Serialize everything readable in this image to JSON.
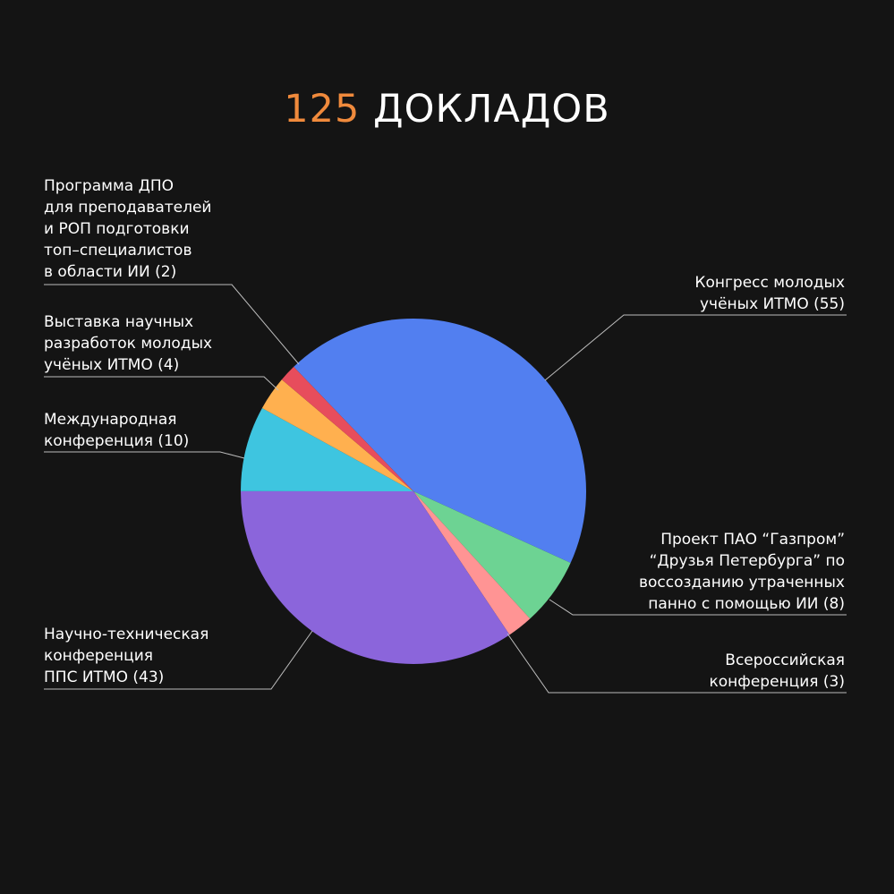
{
  "title": {
    "number": "125",
    "text": "ДОКЛАДОВ"
  },
  "colors": {
    "background": "#141414",
    "accent": "#f08a3c",
    "leader_lines": "#bdbdbd"
  },
  "chart_data": {
    "type": "pie",
    "title": "125 ДОКЛАДОВ",
    "total": 125,
    "slices": [
      {
        "label": "Конгресс молодых\nучёных ИТМО (55)",
        "value": 55,
        "color": "#527ff0"
      },
      {
        "label": "Проект ПАО “Газпром”\n“Друзья Петербурга” по\nвоссозданию утраченных\nпанно с помощью ИИ (8)",
        "value": 8,
        "color": "#6dd393"
      },
      {
        "label": "Всероссийская\nконференция (3)",
        "value": 3,
        "color": "#ff9494"
      },
      {
        "label": "Научно-техническая\nконференция\nППС ИТМО (43)",
        "value": 43,
        "color": "#8b65db"
      },
      {
        "label": "Международная\nконференция (10)",
        "value": 10,
        "color": "#3ec5e0"
      },
      {
        "label": "Выставка научных\nразработок молодых\nучёных ИТМО (4)",
        "value": 4,
        "color": "#ffb04f"
      },
      {
        "label": "Программа ДПО\nдля преподавателей\nи РОП подготовки\nтоп–специалистов\nв области ИИ (2)",
        "value": 2,
        "color": "#e74d5c"
      }
    ]
  }
}
